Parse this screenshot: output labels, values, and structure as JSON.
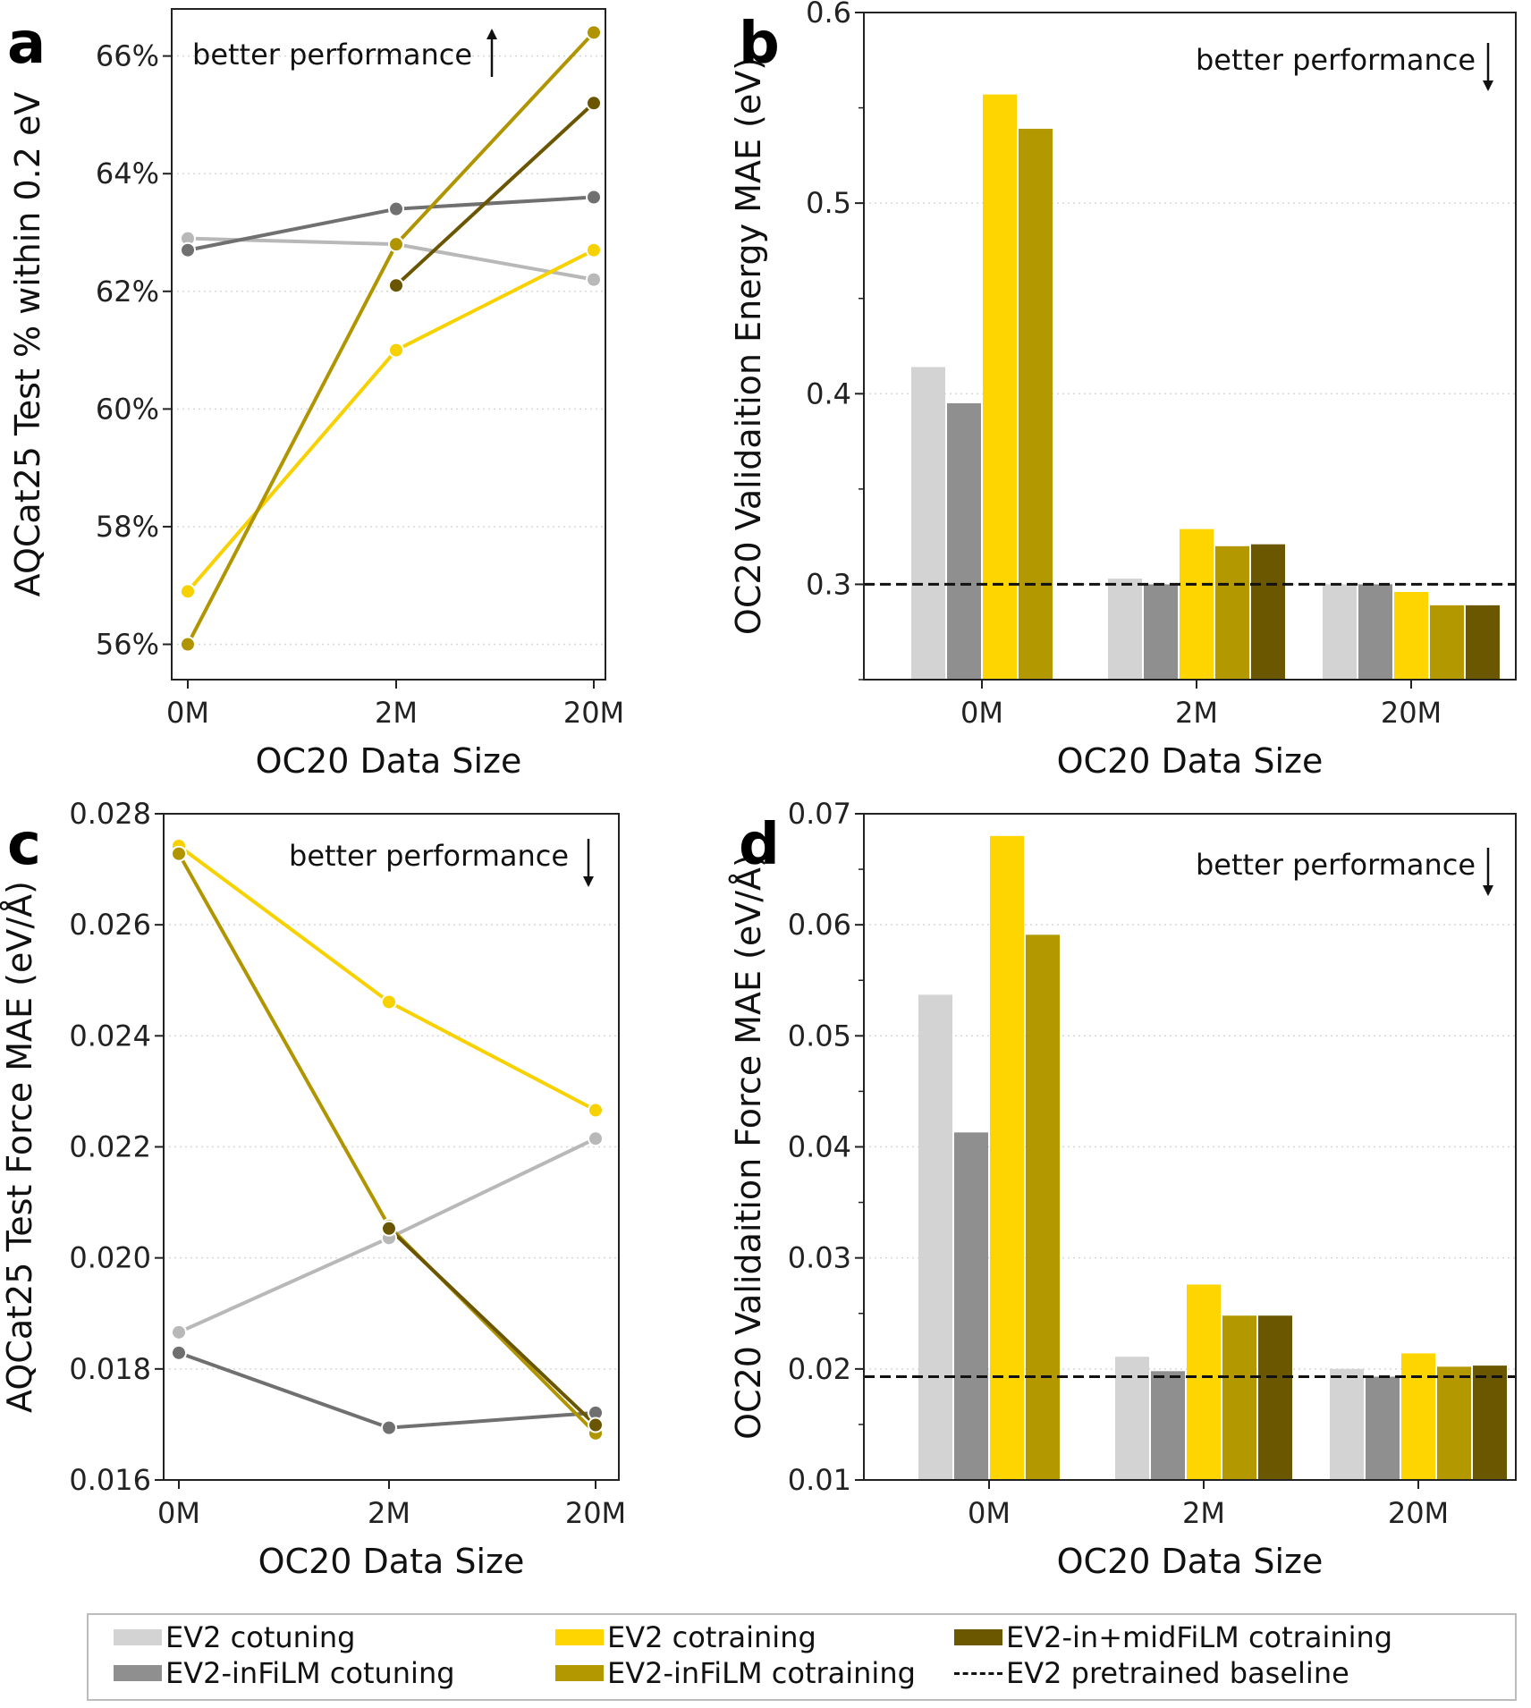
{
  "chart_data": [
    {
      "id": "a",
      "panel_letter": "a",
      "type": "line",
      "xlabel": "OC20 Data Size",
      "ylabel": "AQCat25 Test % within 0.2 eV",
      "categories": [
        "0M",
        "2M",
        "20M"
      ],
      "ylim": [
        55.4,
        66.8
      ],
      "yticks": [
        56,
        58,
        60,
        62,
        64,
        66
      ],
      "ytick_labels": [
        "56%",
        "58%",
        "60%",
        "62%",
        "64%",
        "66%"
      ],
      "annotation": "better performance",
      "annotation_arrow": "up",
      "grid": "horizontal dotted",
      "series": [
        {
          "name": "EV2 cotuning",
          "color": "#b8b8b8",
          "values": [
            62.9,
            62.8,
            62.2
          ]
        },
        {
          "name": "EV2-inFiLM cotuning",
          "color": "#707070",
          "values": [
            62.7,
            63.4,
            63.6
          ]
        },
        {
          "name": "EV2 cotraining",
          "color": "#f7d100",
          "values": [
            56.9,
            61.0,
            62.7
          ]
        },
        {
          "name": "EV2-inFiLM cotraining",
          "color": "#b09500",
          "values": [
            56.0,
            62.8,
            66.4
          ]
        },
        {
          "name": "EV2-in+midFiLM cotraining",
          "color": "#6a5500",
          "values": [
            null,
            62.1,
            65.2
          ]
        }
      ]
    },
    {
      "id": "b",
      "panel_letter": "b",
      "type": "bar",
      "xlabel": "OC20 Data Size",
      "ylabel": "OC20 Validaition Energy MAE (eV)",
      "categories": [
        "0M",
        "2M",
        "20M"
      ],
      "ylim": [
        0.25,
        0.6
      ],
      "yticks": [
        0.3,
        0.4,
        0.5,
        0.6
      ],
      "ytick_labels": [
        "0.3",
        "0.4",
        "0.5",
        "0.6"
      ],
      "annotation": "better performance",
      "annotation_arrow": "down",
      "baseline": 0.3,
      "grid": "horizontal dotted",
      "series": [
        {
          "name": "EV2 cotuning",
          "color": "#d3d3d3",
          "values": [
            0.414,
            0.303,
            0.3
          ]
        },
        {
          "name": "EV2-inFiLM cotuning",
          "color": "#8f8f8f",
          "values": [
            0.395,
            0.3,
            0.3
          ]
        },
        {
          "name": "EV2 cotraining",
          "color": "#ffd500",
          "values": [
            0.557,
            0.329,
            0.296
          ]
        },
        {
          "name": "EV2-inFiLM cotraining",
          "color": "#b39800",
          "values": [
            0.539,
            0.32,
            0.289
          ]
        },
        {
          "name": "EV2-in+midFiLM cotraining",
          "color": "#6a5700",
          "values": [
            null,
            0.321,
            0.289
          ]
        }
      ]
    },
    {
      "id": "c",
      "panel_letter": "c",
      "type": "line",
      "xlabel": "OC20 Data Size",
      "ylabel": "AQCat25 Test Force MAE (eV/Å)",
      "categories": [
        "0M",
        "2M",
        "20M"
      ],
      "ylim": [
        0.016,
        0.028
      ],
      "yticks": [
        0.016,
        0.018,
        0.02,
        0.022,
        0.024,
        0.026,
        0.028
      ],
      "ytick_labels": [
        "0.016",
        "0.018",
        "0.020",
        "0.022",
        "0.024",
        "0.026",
        "0.028"
      ],
      "annotation": "better performance",
      "annotation_arrow": "down",
      "grid": "horizontal dotted",
      "series": [
        {
          "name": "EV2 cotuning",
          "color": "#b8b8b8",
          "values": [
            0.01866,
            0.02036,
            0.02215
          ]
        },
        {
          "name": "EV2-inFiLM cotuning",
          "color": "#707070",
          "values": [
            0.01829,
            0.01694,
            0.01721
          ]
        },
        {
          "name": "EV2 cotraining",
          "color": "#f7d100",
          "values": [
            0.02742,
            0.02461,
            0.02266
          ]
        },
        {
          "name": "EV2-inFiLM cotraining",
          "color": "#b09500",
          "values": [
            0.02728,
            0.02057,
            0.01684
          ]
        },
        {
          "name": "EV2-in+midFiLM cotraining",
          "color": "#6a5500",
          "values": [
            null,
            0.02053,
            0.01699
          ]
        }
      ]
    },
    {
      "id": "d",
      "panel_letter": "d",
      "type": "bar",
      "xlabel": "OC20 Data Size",
      "ylabel": "OC20 Validaition Force MAE (eV/Å)",
      "categories": [
        "0M",
        "2M",
        "20M"
      ],
      "ylim": [
        0.01,
        0.07
      ],
      "yticks": [
        0.01,
        0.02,
        0.03,
        0.04,
        0.05,
        0.06,
        0.07
      ],
      "ytick_labels": [
        "0.01",
        "0.02",
        "0.03",
        "0.04",
        "0.05",
        "0.06",
        "0.07"
      ],
      "annotation": "better performance",
      "annotation_arrow": "down",
      "baseline": 0.0193,
      "grid": "horizontal dotted",
      "series": [
        {
          "name": "EV2 cotuning",
          "color": "#d3d3d3",
          "values": [
            0.0537,
            0.0211,
            0.02
          ]
        },
        {
          "name": "EV2-inFiLM cotuning",
          "color": "#8f8f8f",
          "values": [
            0.0413,
            0.0198,
            0.0193
          ]
        },
        {
          "name": "EV2 cotraining",
          "color": "#ffd500",
          "values": [
            0.068,
            0.0276,
            0.0214
          ]
        },
        {
          "name": "EV2-inFiLM cotraining",
          "color": "#b39800",
          "values": [
            0.0591,
            0.0248,
            0.0202
          ]
        },
        {
          "name": "EV2-in+midFiLM cotraining",
          "color": "#6a5700",
          "values": [
            null,
            0.0248,
            0.0203
          ]
        }
      ]
    }
  ],
  "legend": {
    "items": [
      {
        "label": "EV2 cotuning",
        "color": "#d3d3d3",
        "style": "bar"
      },
      {
        "label": "EV2-inFiLM cotuning",
        "color": "#8f8f8f",
        "style": "bar"
      },
      {
        "label": "EV2 cotraining",
        "color": "#ffd500",
        "style": "bar"
      },
      {
        "label": "EV2-inFiLM cotraining",
        "color": "#b39800",
        "style": "bar"
      },
      {
        "label": "EV2-in+midFiLM cotraining",
        "color": "#6a5700",
        "style": "bar"
      },
      {
        "label": "EV2 pretrained baseline",
        "color": "#111111",
        "style": "dashed"
      }
    ]
  }
}
